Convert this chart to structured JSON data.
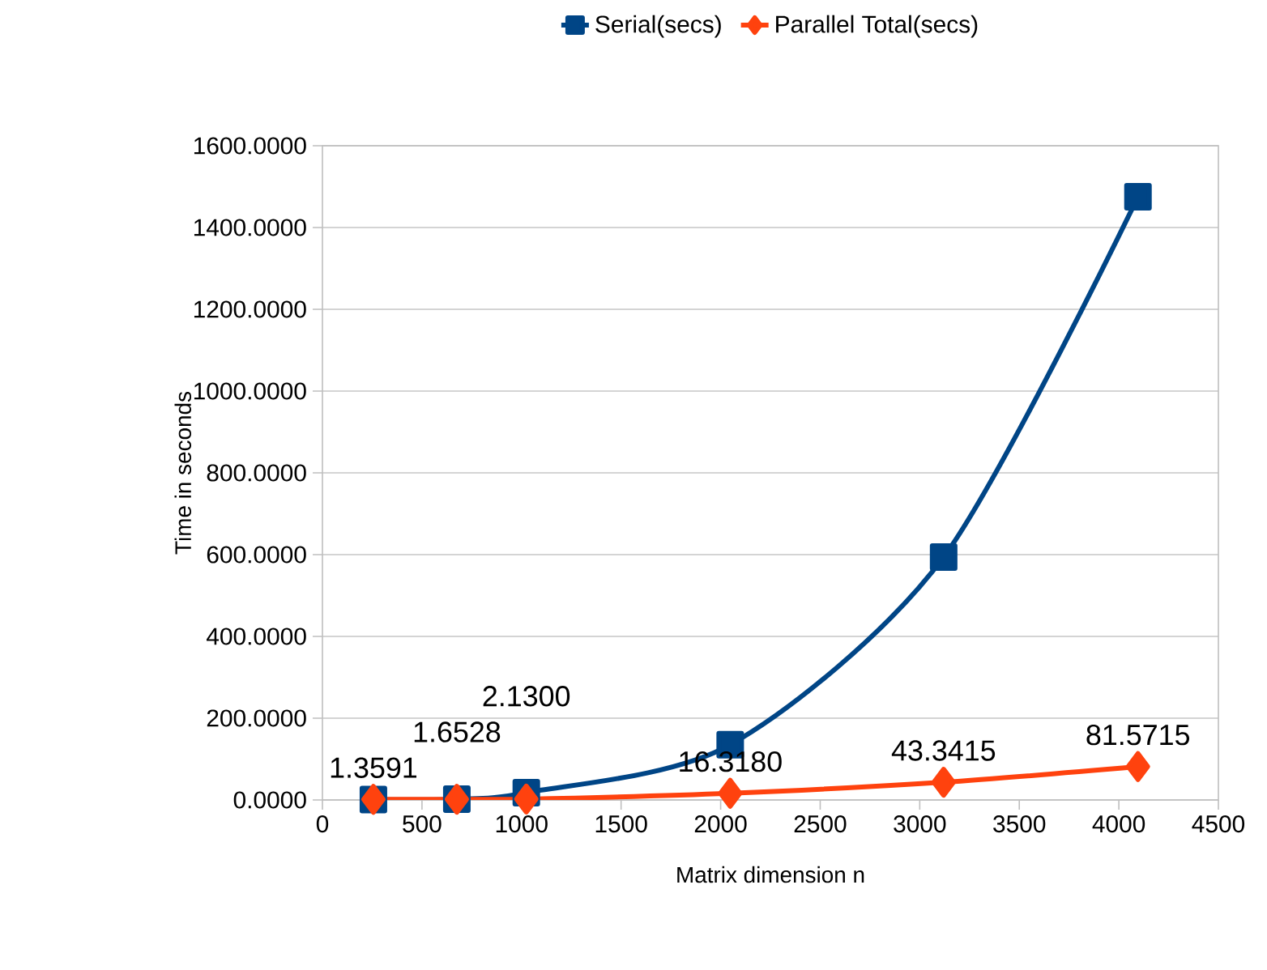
{
  "chart_data": {
    "type": "line",
    "xlabel": "Matrix dimension n",
    "ylabel": "Time in seconds",
    "x": [
      256,
      675,
      1024,
      2048,
      3120,
      4096
    ],
    "series": [
      {
        "name": "Serial(secs)",
        "color": "#004586",
        "marker": "square",
        "values": [
          1,
          2,
          18,
          135,
          594,
          1475
        ]
      },
      {
        "name": "Parallel Total(secs)",
        "color": "#ff420e",
        "marker": "diamond",
        "values": [
          1.3591,
          1.6528,
          2.13,
          16.318,
          43.3415,
          81.5715
        ],
        "value_labels": [
          "1.3591",
          "1.6528",
          "2.1300",
          "16.3180",
          "43.3415",
          "81.5715"
        ]
      }
    ],
    "xlim": [
      0,
      4500
    ],
    "xticks": [
      0,
      500,
      1000,
      1500,
      2000,
      2500,
      3000,
      3500,
      4000,
      4500
    ],
    "ylim": [
      0,
      1600
    ],
    "yticks": [
      {
        "value": 0,
        "label": "0.0000"
      },
      {
        "value": 200,
        "label": "200.0000"
      },
      {
        "value": 400,
        "label": "400.0000"
      },
      {
        "value": 600,
        "label": "600.0000"
      },
      {
        "value": 800,
        "label": "800.0000"
      },
      {
        "value": 1000,
        "label": "1000.0000"
      },
      {
        "value": 1200,
        "label": "1200.0000"
      },
      {
        "value": 1400,
        "label": "1400.0000"
      },
      {
        "value": 1600,
        "label": "1600.0000"
      }
    ],
    "grid": "y",
    "legend": "top",
    "line_style": "solid"
  }
}
